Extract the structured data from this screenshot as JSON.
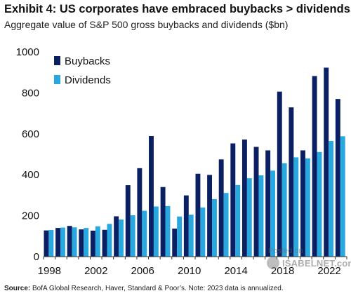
{
  "header": {
    "title": "Exhibit 4: US corporates have embraced buybacks > dividends",
    "subtitle": "Aggregate value of S&P 500 gross buybacks and dividends ($bn)"
  },
  "footer": {
    "source_label": "Source:",
    "source_text": " BofA Global Research, Haver, Standard & Poor’s. Note: 2023 data is annualized."
  },
  "watermark": {
    "posted": "Posted on",
    "brand": "ISABELNET.com"
  },
  "colors": {
    "buybacks": "#0b1f63",
    "dividends": "#29a8e0",
    "axis": "#333333"
  },
  "chart_data": {
    "type": "bar",
    "title": "",
    "xlabel": "",
    "ylabel": "",
    "ylim": [
      0,
      1000
    ],
    "yticks": [
      0,
      200,
      400,
      600,
      800,
      1000
    ],
    "grid": false,
    "legend_position": "top-left",
    "categories": [
      "1998",
      "1999",
      "2000",
      "2001",
      "2002",
      "2003",
      "2004",
      "2005",
      "2006",
      "2007",
      "2008",
      "2009",
      "2010",
      "2011",
      "2012",
      "2013",
      "2014",
      "2015",
      "2016",
      "2017",
      "2018",
      "2019",
      "2020",
      "2021",
      "2022",
      "2023"
    ],
    "xtick_labels": [
      "1998",
      "2002",
      "2006",
      "2010",
      "2014",
      "2018",
      "2022"
    ],
    "series": [
      {
        "name": "Buybacks",
        "color": "#0b1f63",
        "values": [
          128,
          140,
          150,
          133,
          127,
          131,
          197,
          349,
          432,
          589,
          340,
          137,
          299,
          405,
          399,
          475,
          553,
          572,
          536,
          519,
          806,
          729,
          519,
          882,
          923,
          770
        ]
      },
      {
        "name": "Dividends",
        "color": "#29a8e0",
        "values": [
          130,
          142,
          143,
          140,
          148,
          160,
          181,
          202,
          224,
          245,
          247,
          196,
          205,
          240,
          281,
          311,
          350,
          383,
          397,
          420,
          456,
          485,
          480,
          511,
          565,
          588
        ]
      }
    ]
  }
}
